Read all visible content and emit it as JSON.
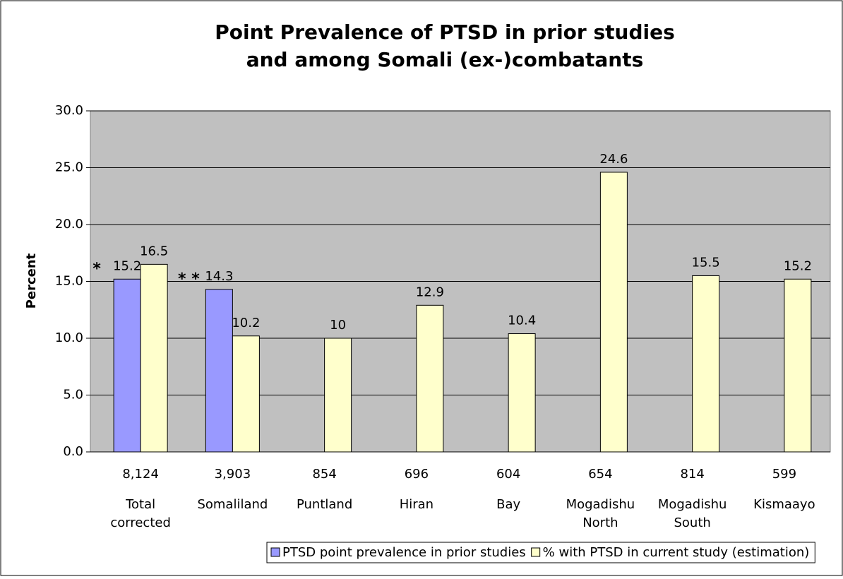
{
  "chart_data": {
    "type": "bar",
    "title": [
      "Point Prevalence of PTSD in prior studies",
      "and among Somali (ex-)combatants"
    ],
    "y_label": "Percent",
    "sample_sizes": [
      "8,124",
      "3,903",
      "854",
      "696",
      "604",
      "654",
      "814",
      "599"
    ],
    "categories": [
      [
        "Total",
        "corrected"
      ],
      [
        "Somaliland"
      ],
      [
        "Puntland"
      ],
      [
        "Hiran"
      ],
      [
        "Bay"
      ],
      [
        "Mogadishu",
        "North"
      ],
      [
        "Mogadishu",
        "South"
      ],
      [
        "Kismaayo"
      ]
    ],
    "series": [
      {
        "name": "PTSD point prevalence in prior studies",
        "color": "#9999ff",
        "values": [
          15.2,
          14.3,
          null,
          null,
          null,
          null,
          null,
          null
        ]
      },
      {
        "name": "% with PTSD in current study (estimation)",
        "color": "#ffffcc",
        "values": [
          16.5,
          10.2,
          10,
          12.9,
          10.4,
          24.6,
          15.5,
          15.2
        ]
      }
    ],
    "annotations": [
      "*",
      "* *"
    ],
    "ylim": [
      0,
      30
    ],
    "yticks": [
      {
        "value": 0,
        "label": "0.0"
      },
      {
        "value": 5,
        "label": "5.0"
      },
      {
        "value": 10,
        "label": "10.0"
      },
      {
        "value": 15,
        "label": "15.0"
      },
      {
        "value": 20,
        "label": "20.0"
      },
      {
        "value": 25,
        "label": "25.0"
      },
      {
        "value": 30,
        "label": "30.0"
      }
    ],
    "grid": true,
    "legend": "bottom",
    "plot_background": "#c0c0c0"
  }
}
